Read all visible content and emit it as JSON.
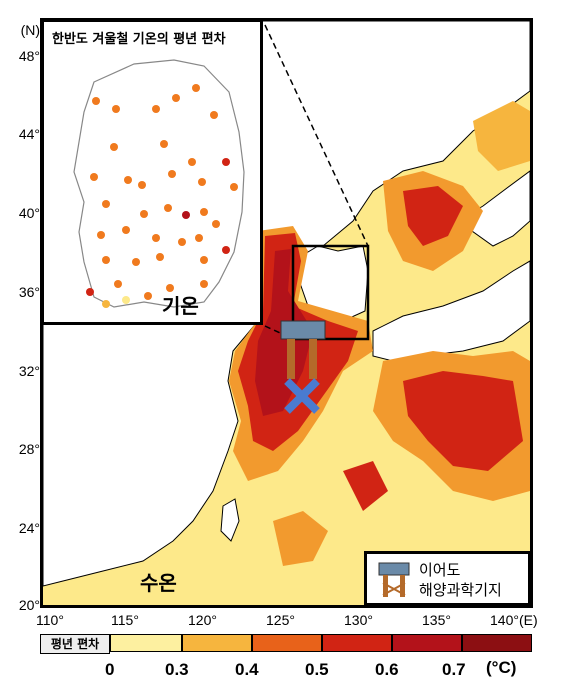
{
  "y_axis": {
    "unit": "(N)",
    "ticks": [
      "48°",
      "44°",
      "40°",
      "36°",
      "32°",
      "28°",
      "24°",
      "20°"
    ]
  },
  "x_axis": {
    "ticks": [
      "110°",
      "115°",
      "120°",
      "125°",
      "130°",
      "135°",
      "140°(E)"
    ]
  },
  "inset": {
    "title": "한반도 겨울철 기온의 평년 편차",
    "label": "기온"
  },
  "sea_label": "수온",
  "station": {
    "name_line1": "이어도",
    "name_line2": "해양과학기지"
  },
  "legend": {
    "title": "평년 편차",
    "ticks": [
      "0",
      "0.3",
      "0.4",
      "0.5",
      "0.6",
      "0.7"
    ],
    "unit": "(°C)",
    "colors": [
      "#ffffff",
      "#fdf0a0",
      "#f6b53e",
      "#e8621a",
      "#d12414",
      "#b3121a",
      "#8c0f12"
    ]
  },
  "colors": {
    "land": "#ffffff",
    "anomaly_low": "#fde98a",
    "anomaly_mid": "#f29a2e",
    "anomaly_high": "#c81d13",
    "dot": "#f07a1e"
  }
}
